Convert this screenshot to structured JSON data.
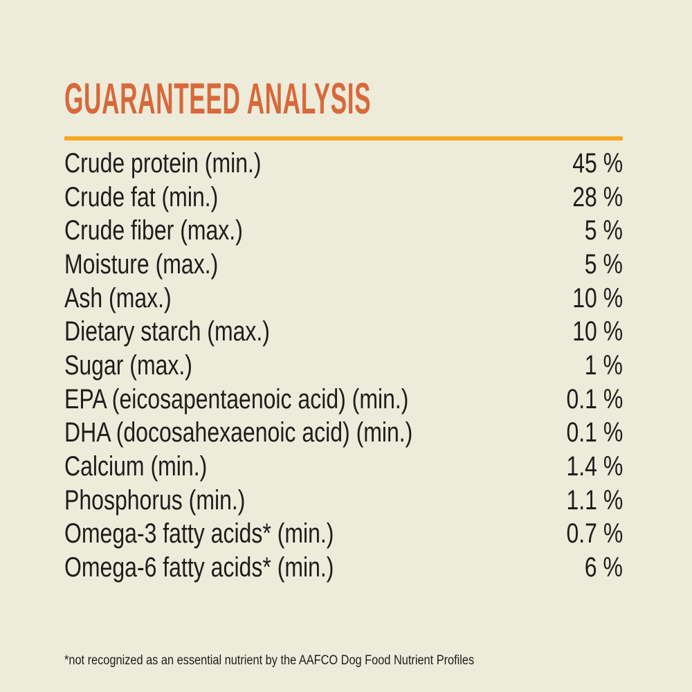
{
  "theme": {
    "background": "#EDEBDA",
    "title_color": "#D7693A",
    "underline_color": "#F7A81F",
    "text_color": "#1E1D1B"
  },
  "header": {
    "title": "GUARANTEED ANALYSIS"
  },
  "table": {
    "rows": [
      {
        "label": "Crude protein (min.)",
        "value": "45 %"
      },
      {
        "label": "Crude fat (min.)",
        "value": "28 %"
      },
      {
        "label": "Crude fiber (max.)",
        "value": "5 %"
      },
      {
        "label": "Moisture (max.)",
        "value": "5 %"
      },
      {
        "label": "Ash (max.)",
        "value": "10 %"
      },
      {
        "label": "Dietary starch (max.)",
        "value": "10 %"
      },
      {
        "label": "Sugar (max.)",
        "value": "1 %"
      },
      {
        "label": "EPA (eicosapentaenoic acid) (min.)",
        "value": "0.1 %"
      },
      {
        "label": "DHA (docosahexaenoic acid) (min.)",
        "value": "0.1 %"
      },
      {
        "label": "Calcium (min.)",
        "value": "1.4 %"
      },
      {
        "label": "Phosphorus (min.)",
        "value": "1.1 %"
      },
      {
        "label": "Omega-3 fatty acids* (min.)",
        "value": "0.7 %"
      },
      {
        "label": "Omega-6 fatty acids* (min.)",
        "value": "6 %"
      }
    ]
  },
  "footnote": {
    "text": "*not recognized as an essential nutrient by the AAFCO Dog Food Nutrient Profiles"
  }
}
